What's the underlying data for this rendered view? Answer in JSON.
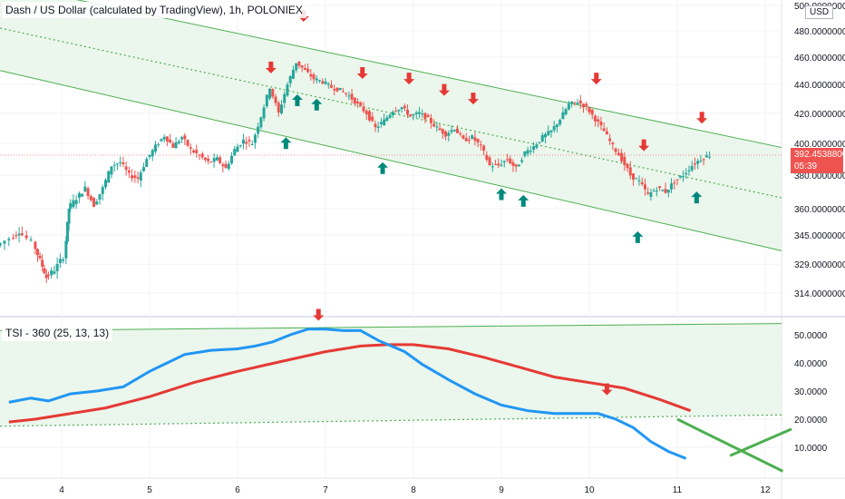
{
  "title": "Dash / US Dollar (calculated by TradingView), 1h, POLONIEX",
  "currency_badge": "USD",
  "last_price": {
    "value": "392.45388000",
    "countdown": "05:39"
  },
  "indicator_title": "TSI - 360 (25, 13, 13)",
  "colors": {
    "bull": "#26a69a",
    "bear": "#ef5350",
    "channel_line": "#4caf50",
    "channel_fill": "#e8f5e9",
    "tsi_line": "#2196f3",
    "signal_line": "#e53935",
    "arrow_down": "#e53935",
    "arrow_up": "#00897b",
    "grid": "#f0f3fa",
    "axis_text": "#131722"
  },
  "chart_data": [
    {
      "type": "candlestick",
      "title": "Dash / US Dollar (calculated by TradingView), 1h, POLONIEX",
      "x_tick_labels": [
        "4",
        "5",
        "6",
        "7",
        "8",
        "9",
        "10",
        "11",
        "12"
      ],
      "y_axis_labels": [
        "500.00000000",
        "480.00000000",
        "460.00000000",
        "440.00000000",
        "420.00000000",
        "400.00000000",
        "380.00000000",
        "360.00000000",
        "345.00000000",
        "329.00000000",
        "314.00000000"
      ],
      "y_scale": "log",
      "ylim": [
        305,
        500
      ],
      "xlim": [
        3.3,
        12.3
      ],
      "last_value": 392.45388,
      "close_series": [
        [
          3.3,
          339
        ],
        [
          3.45,
          343
        ],
        [
          3.55,
          347
        ],
        [
          3.7,
          341
        ],
        [
          3.78,
          331
        ],
        [
          3.85,
          322
        ],
        [
          3.95,
          326
        ],
        [
          4.05,
          333
        ],
        [
          4.1,
          360
        ],
        [
          4.2,
          366
        ],
        [
          4.3,
          372
        ],
        [
          4.4,
          362
        ],
        [
          4.5,
          372
        ],
        [
          4.6,
          386
        ],
        [
          4.7,
          388
        ],
        [
          4.8,
          380
        ],
        [
          4.9,
          378
        ],
        [
          5.0,
          390
        ],
        [
          5.1,
          398
        ],
        [
          5.2,
          405
        ],
        [
          5.3,
          398
        ],
        [
          5.4,
          404
        ],
        [
          5.5,
          396
        ],
        [
          5.6,
          392
        ],
        [
          5.7,
          388
        ],
        [
          5.8,
          390
        ],
        [
          5.9,
          384
        ],
        [
          6.0,
          396
        ],
        [
          6.1,
          402
        ],
        [
          6.2,
          400
        ],
        [
          6.3,
          418
        ],
        [
          6.4,
          438
        ],
        [
          6.5,
          420
        ],
        [
          6.6,
          440
        ],
        [
          6.7,
          456
        ],
        [
          6.8,
          450
        ],
        [
          6.9,
          444
        ],
        [
          7.0,
          442
        ],
        [
          7.1,
          438
        ],
        [
          7.2,
          436
        ],
        [
          7.3,
          432
        ],
        [
          7.4,
          426
        ],
        [
          7.5,
          420
        ],
        [
          7.6,
          410
        ],
        [
          7.7,
          415
        ],
        [
          7.8,
          422
        ],
        [
          7.9,
          424
        ],
        [
          8.0,
          418
        ],
        [
          8.1,
          420
        ],
        [
          8.2,
          416
        ],
        [
          8.3,
          410
        ],
        [
          8.4,
          406
        ],
        [
          8.5,
          410
        ],
        [
          8.6,
          402
        ],
        [
          8.7,
          404
        ],
        [
          8.8,
          398
        ],
        [
          8.9,
          386
        ],
        [
          9.0,
          386
        ],
        [
          9.1,
          390
        ],
        [
          9.2,
          384
        ],
        [
          9.3,
          394
        ],
        [
          9.4,
          398
        ],
        [
          9.5,
          404
        ],
        [
          9.6,
          408
        ],
        [
          9.7,
          416
        ],
        [
          9.8,
          426
        ],
        [
          9.9,
          428
        ],
        [
          10.0,
          424
        ],
        [
          10.1,
          416
        ],
        [
          10.2,
          408
        ],
        [
          10.3,
          398
        ],
        [
          10.4,
          390
        ],
        [
          10.5,
          380
        ],
        [
          10.6,
          376
        ],
        [
          10.7,
          368
        ],
        [
          10.8,
          372
        ],
        [
          10.9,
          370
        ],
        [
          11.0,
          376
        ],
        [
          11.1,
          380
        ],
        [
          11.2,
          386
        ],
        [
          11.3,
          390
        ],
        [
          11.4,
          392.45
        ]
      ],
      "channel_lines": [
        {
          "from": [
            3.3,
            518
          ],
          "to": [
            12.3,
            396
          ]
        },
        {
          "from": [
            3.3,
            482
          ],
          "to": [
            12.3,
            365
          ]
        },
        {
          "from": [
            3.3,
            450
          ],
          "to": [
            12.3,
            335
          ]
        }
      ],
      "annotations": [
        {
          "type": "arrow-down",
          "x": 6.38,
          "y": 448
        },
        {
          "type": "arrow-down",
          "x": 6.75,
          "y": 487
        },
        {
          "type": "arrow-down",
          "x": 7.42,
          "y": 444
        },
        {
          "type": "arrow-down",
          "x": 7.95,
          "y": 440
        },
        {
          "type": "arrow-down",
          "x": 8.35,
          "y": 432
        },
        {
          "type": "arrow-down",
          "x": 8.68,
          "y": 426
        },
        {
          "type": "arrow-down",
          "x": 10.08,
          "y": 440
        },
        {
          "type": "arrow-down",
          "x": 10.62,
          "y": 395
        },
        {
          "type": "arrow-down",
          "x": 11.28,
          "y": 413
        },
        {
          "type": "arrow-up",
          "x": 6.55,
          "y": 404
        },
        {
          "type": "arrow-up",
          "x": 6.68,
          "y": 433
        },
        {
          "type": "arrow-up",
          "x": 6.9,
          "y": 430
        },
        {
          "type": "arrow-up",
          "x": 7.65,
          "y": 388
        },
        {
          "type": "arrow-up",
          "x": 9.0,
          "y": 372
        },
        {
          "type": "arrow-up",
          "x": 9.25,
          "y": 368
        },
        {
          "type": "arrow-up",
          "x": 10.55,
          "y": 347
        },
        {
          "type": "arrow-up",
          "x": 11.22,
          "y": 370
        }
      ]
    },
    {
      "type": "line",
      "title": "TSI - 360 (25, 13, 13)",
      "y_axis_labels": [
        "50.0000",
        "40.0000",
        "30.0000",
        "20.0000",
        "10.0000"
      ],
      "ylim": [
        2,
        55
      ],
      "xlim": [
        3.3,
        12.3
      ],
      "series": [
        {
          "values_xy": [
            [
              3.4,
              26
            ],
            [
              3.65,
              27.5
            ],
            [
              3.85,
              26.5
            ],
            [
              4.1,
              29
            ],
            [
              4.4,
              30
            ],
            [
              4.7,
              31.5
            ],
            [
              5.0,
              37
            ],
            [
              5.2,
              40
            ],
            [
              5.4,
              43
            ],
            [
              5.7,
              44.5
            ],
            [
              6.0,
              45
            ],
            [
              6.2,
              46
            ],
            [
              6.4,
              47.5
            ],
            [
              6.6,
              50
            ],
            [
              6.8,
              52
            ],
            [
              7.0,
              52
            ],
            [
              7.2,
              51.5
            ],
            [
              7.4,
              51.5
            ],
            [
              7.6,
              48
            ],
            [
              7.9,
              44
            ],
            [
              8.1,
              39.5
            ],
            [
              8.4,
              34
            ],
            [
              8.7,
              29
            ],
            [
              9.0,
              25
            ],
            [
              9.3,
              23
            ],
            [
              9.6,
              22
            ],
            [
              9.9,
              22
            ],
            [
              10.1,
              22
            ],
            [
              10.3,
              20
            ],
            [
              10.5,
              17
            ],
            [
              10.7,
              12
            ],
            [
              10.9,
              8.5
            ],
            [
              11.1,
              6
            ]
          ]
        },
        {
          "values_xy": [
            [
              3.4,
              19
            ],
            [
              3.7,
              20
            ],
            [
              4.0,
              21.5
            ],
            [
              4.5,
              24
            ],
            [
              5.0,
              28
            ],
            [
              5.5,
              33
            ],
            [
              6.0,
              37
            ],
            [
              6.5,
              40.5
            ],
            [
              7.0,
              44
            ],
            [
              7.4,
              46
            ],
            [
              7.7,
              46.5
            ],
            [
              8.0,
              46.5
            ],
            [
              8.4,
              45
            ],
            [
              8.8,
              42
            ],
            [
              9.2,
              38.5
            ],
            [
              9.6,
              35
            ],
            [
              10.0,
              33
            ],
            [
              10.4,
              31
            ],
            [
              10.8,
              27
            ],
            [
              11.15,
              23
            ]
          ]
        }
      ],
      "reference_lines": [
        {
          "from": [
            3.3,
            51.5
          ],
          "to": [
            12.3,
            54
          ]
        },
        {
          "from": [
            3.3,
            17.5
          ],
          "to": [
            12.3,
            21.5
          ]
        },
        {
          "from": [
            11.0,
            20
          ],
          "to": [
            12.2,
            1.5
          ]
        },
        {
          "from": [
            11.6,
            7
          ],
          "to": [
            12.3,
            16.5
          ]
        }
      ],
      "annotations": [
        {
          "type": "arrow-down",
          "x": 6.92,
          "y": 55
        },
        {
          "type": "arrow-down",
          "x": 10.2,
          "y": 28.5
        }
      ]
    }
  ]
}
